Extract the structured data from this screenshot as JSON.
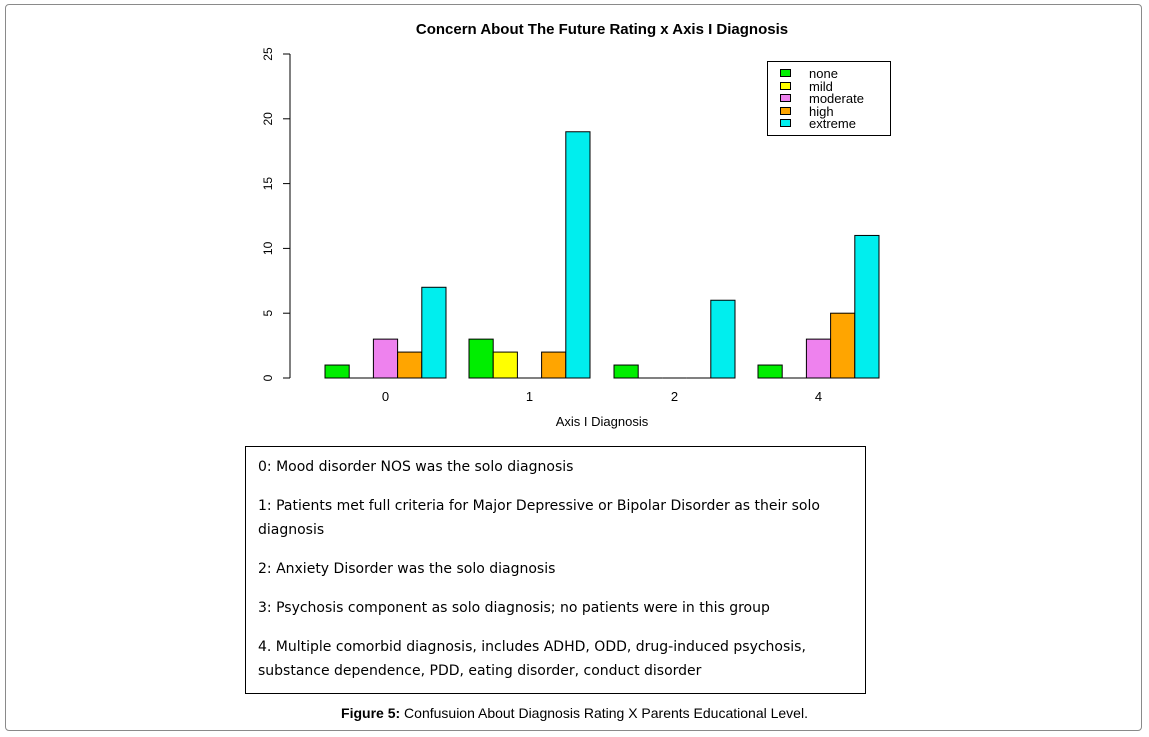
{
  "chart_data": {
    "type": "bar",
    "title": "Concern About The Future Rating x Axis I Diagnosis",
    "xlabel": "Axis I Diagnosis",
    "ylabel": "",
    "categories": [
      "0",
      "1",
      "2",
      "4"
    ],
    "ylim": [
      0,
      25
    ],
    "yticks": [
      "0",
      "5",
      "10",
      "15",
      "20",
      "25"
    ],
    "grid": false,
    "legend_position": "top-right",
    "series": [
      {
        "name": "none",
        "color": "#00ee00",
        "values": [
          1,
          3,
          1,
          1
        ]
      },
      {
        "name": "mild",
        "color": "#ffff00",
        "values": [
          0,
          2,
          0,
          0
        ]
      },
      {
        "name": "moderate",
        "color": "#ee82ee",
        "values": [
          3,
          0,
          0,
          3
        ]
      },
      {
        "name": "high",
        "color": "#ffa500",
        "values": [
          2,
          2,
          0,
          5
        ]
      },
      {
        "name": "extreme",
        "color": "#00eeee",
        "values": [
          7,
          19,
          6,
          11
        ]
      }
    ]
  },
  "notes": [
    "0: Mood disorder NOS was the solo diagnosis",
    "1: Patients met full criteria for Major Depressive or Bipolar Disorder as their solo diagnosis",
    "2: Anxiety Disorder was the solo diagnosis",
    "3: Psychosis component as solo diagnosis; no patients were in this group",
    "4. Multiple comorbid diagnosis, includes ADHD, ODD, drug-induced psychosis, substance dependence, PDD, eating disorder, conduct disorder"
  ],
  "caption": {
    "label": "Figure 5:",
    "text": " Confusuion About Diagnosis Rating X Parents Educational Level."
  }
}
